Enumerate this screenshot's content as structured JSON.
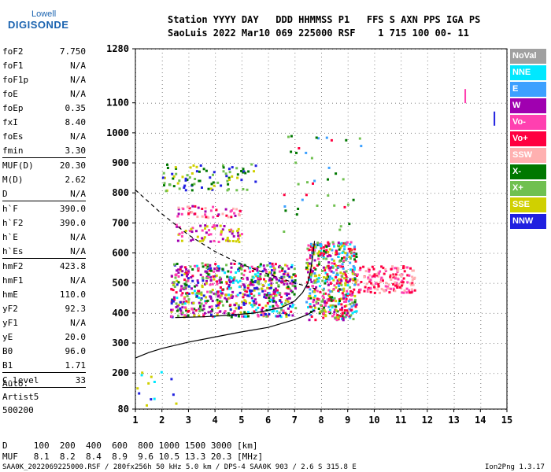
{
  "logo": {
    "top": "Lowell",
    "main": "DIGISONDE"
  },
  "header": {
    "row1": "Station YYYY DAY   DDD HHMMSS P1   FFS S AXN PPS IGA PS",
    "row2": "SaoLuis 2022 Mar10 069 225000 RSF    1 715 100 00- 11"
  },
  "params": [
    {
      "name": "foF2",
      "value": "7.750"
    },
    {
      "name": "foF1",
      "value": "N/A"
    },
    {
      "name": "foF1p",
      "value": "N/A"
    },
    {
      "name": "foE",
      "value": "N/A"
    },
    {
      "name": "foEp",
      "value": "0.35"
    },
    {
      "name": "fxI",
      "value": "8.40"
    },
    {
      "name": "foEs",
      "value": "N/A"
    },
    {
      "name": "fmin",
      "value": "3.30",
      "sep_after": true
    },
    {
      "name": "MUF(D)",
      "value": "20.30"
    },
    {
      "name": "M(D)",
      "value": "2.62"
    },
    {
      "name": "D",
      "value": "N/A",
      "sep_after": true
    },
    {
      "name": "h`F",
      "value": "390.0"
    },
    {
      "name": "h`F2",
      "value": "390.0"
    },
    {
      "name": "h`E",
      "value": "N/A"
    },
    {
      "name": "h`Es",
      "value": "N/A",
      "sep_after": true
    },
    {
      "name": "hmF2",
      "value": "423.8"
    },
    {
      "name": "hmF1",
      "value": "N/A"
    },
    {
      "name": "hmE",
      "value": "110.0"
    },
    {
      "name": "yF2",
      "value": "92.3"
    },
    {
      "name": "yF1",
      "value": "N/A"
    },
    {
      "name": "yE",
      "value": "20.0"
    },
    {
      "name": "B0",
      "value": "96.0"
    },
    {
      "name": "B1",
      "value": "1.71",
      "sep_after": true
    },
    {
      "name": "C-level",
      "value": "33",
      "sep_after": true
    }
  ],
  "autoscale": {
    "line1": "Auto:",
    "line2": "Artist5",
    "line3": "500200"
  },
  "bottom_table": {
    "d_row": "D     100  200  400  600  800 1000 1500 3000 [km]",
    "muf_row": "MUF   8.1  8.2  8.4  8.9  9.6 10.5 13.3 20.3 [MHz]"
  },
  "footer": {
    "left": "SAA0K_2022069225000.RSF / 280fx256h 50 kHz 5.0 km / DPS-4 SAA0K 903 / 2.6 S 315.8 E",
    "right": "Ion2Png 1.3.17"
  },
  "legend": [
    {
      "label": "NoVal",
      "color": "#a0a0a0"
    },
    {
      "label": "NNE",
      "color": "#00e8ff"
    },
    {
      "label": "E",
      "color": "#3ca0ff"
    },
    {
      "label": "W",
      "color": "#a000b0"
    },
    {
      "label": "Vo-",
      "color": "#ff40b0"
    },
    {
      "label": "Vo+",
      "color": "#ff0040"
    },
    {
      "label": "SSW",
      "color": "#ffb0b0"
    },
    {
      "label": "X-",
      "color": "#007800"
    },
    {
      "label": "X+",
      "color": "#70c050"
    },
    {
      "label": "SSE",
      "color": "#d0d000"
    },
    {
      "label": "NNW",
      "color": "#2020e0"
    }
  ],
  "chart_data": {
    "type": "scatter",
    "xlim": [
      1,
      15
    ],
    "ylim": [
      80,
      1280
    ],
    "xticks": [
      "1",
      "2",
      "3",
      "4",
      "5",
      "6",
      "7",
      "8",
      "9",
      "10",
      "11",
      "12",
      "13",
      "14",
      "15"
    ],
    "yticks": [
      "80",
      "200",
      "300",
      "400",
      "500",
      "600",
      "700",
      "800",
      "900",
      "1000",
      "1100",
      "1280"
    ],
    "grid": true,
    "traces": [
      {
        "name": "",
        "color": "#000000",
        "dash": "",
        "points": [
          [
            1,
            250
          ],
          [
            1.5,
            268
          ],
          [
            2,
            282
          ],
          [
            3,
            303
          ],
          [
            4,
            320
          ],
          [
            5,
            337
          ],
          [
            6,
            352
          ],
          [
            7,
            378
          ],
          [
            7.5,
            395
          ],
          [
            7.75,
            410
          ]
        ]
      },
      {
        "name": "",
        "color": "#000000",
        "dash": "",
        "points": [
          [
            2.5,
            385
          ],
          [
            3.5,
            387
          ],
          [
            4.5,
            392
          ],
          [
            5.5,
            400
          ],
          [
            6.5,
            418
          ],
          [
            7,
            440
          ],
          [
            7.3,
            468
          ],
          [
            7.5,
            500
          ],
          [
            7.6,
            540
          ],
          [
            7.7,
            600
          ],
          [
            7.75,
            640
          ]
        ]
      },
      {
        "name": "",
        "color": "#000000",
        "dash": "5,4",
        "points": [
          [
            1,
            810
          ],
          [
            1.5,
            770
          ],
          [
            2,
            730
          ],
          [
            2.5,
            695
          ],
          [
            3,
            660
          ],
          [
            3.5,
            632
          ],
          [
            4,
            605
          ],
          [
            4.5,
            583
          ],
          [
            5,
            563
          ],
          [
            5.5,
            545
          ],
          [
            6,
            530
          ],
          [
            6.5,
            515
          ],
          [
            7,
            500
          ],
          [
            7.5,
            488
          ],
          [
            7.8,
            480
          ]
        ]
      }
    ],
    "clusters": [
      {
        "x": [
          2.3,
          7.0
        ],
        "y": [
          390,
          570
        ],
        "n": 700,
        "colors": [
          "#a000b0",
          "#ff40b0",
          "#ff0040",
          "#a000b0",
          "#2020e0",
          "#00e8ff",
          "#007800",
          "#70c050",
          "#d0d000"
        ]
      },
      {
        "x": [
          7.4,
          9.3
        ],
        "y": [
          380,
          640
        ],
        "n": 500,
        "colors": [
          "#ff0040",
          "#ff40b0",
          "#a000b0",
          "#ff0040",
          "#00e8ff",
          "#3ca0ff",
          "#007800",
          "#70c050",
          "#d0d000"
        ]
      },
      {
        "x": [
          9.3,
          11.5
        ],
        "y": [
          470,
          560
        ],
        "n": 160,
        "colors": [
          "#ff0040",
          "#ff40b0",
          "#ffb0b0"
        ]
      },
      {
        "x": [
          2.0,
          5.5
        ],
        "y": [
          810,
          900
        ],
        "n": 90,
        "colors": [
          "#007800",
          "#70c050",
          "#d0d000",
          "#2020e0"
        ]
      },
      {
        "x": [
          2.5,
          5.0
        ],
        "y": [
          720,
          760
        ],
        "n": 50,
        "colors": [
          "#ff40b0",
          "#ff0040",
          "#ffb0b0",
          "#a000b0"
        ]
      },
      {
        "x": [
          2.5,
          5.0
        ],
        "y": [
          640,
          700
        ],
        "n": 70,
        "colors": [
          "#a000b0",
          "#ff40b0",
          "#d0d000"
        ]
      },
      {
        "x": [
          1.0,
          2.5
        ],
        "y": [
          80,
          240
        ],
        "n": 14,
        "colors": [
          "#2020e0",
          "#00e8ff",
          "#d0d000"
        ]
      },
      {
        "x": [
          6.5,
          9.5
        ],
        "y": [
          660,
          1000
        ],
        "n": 40,
        "colors": [
          "#ff0040",
          "#007800",
          "#70c050",
          "#3ca0ff"
        ]
      }
    ],
    "markers": [
      {
        "x": 13.4,
        "y": 1125,
        "color": "#ff40b0"
      },
      {
        "x": 14.5,
        "y": 1050,
        "color": "#2020e0"
      }
    ]
  }
}
